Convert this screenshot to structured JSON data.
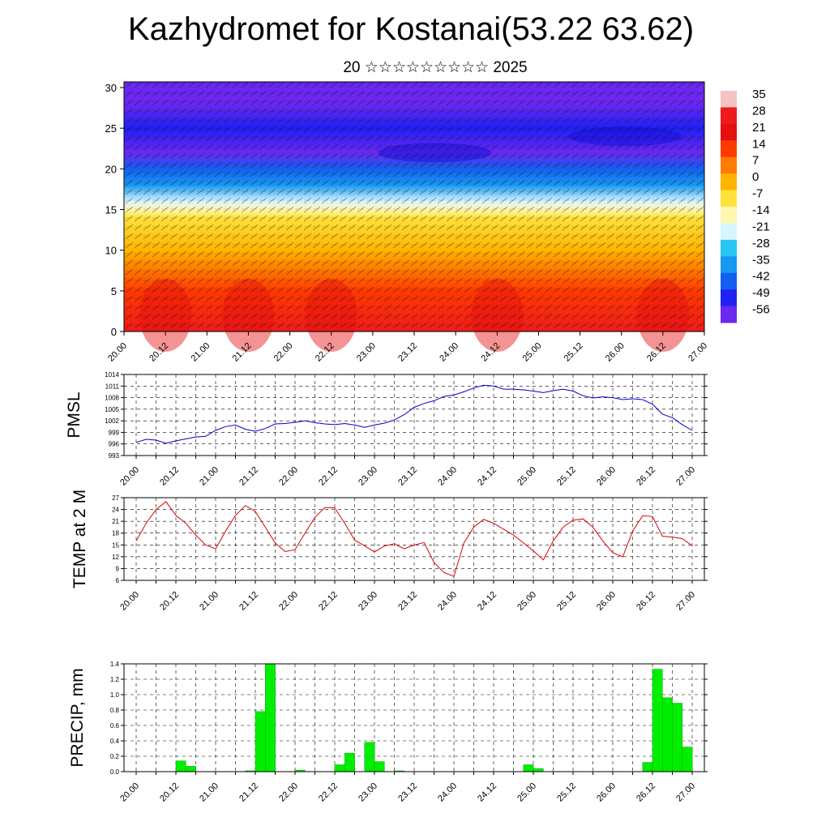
{
  "title": "Kazhydromet for Kostanai(53.22 63.62)",
  "subtitle": "20 ☆☆☆☆☆☆☆☆☆ 2025",
  "time_ticks": [
    "20.00",
    "20.12",
    "21.00",
    "21.12",
    "22.00",
    "22.12",
    "23.00",
    "23.12",
    "24.00",
    "24.12",
    "25.00",
    "25.12",
    "26.00",
    "26.12",
    "27.00"
  ],
  "chart_data": [
    {
      "type": "heatmap",
      "description_source": "cross-section panel",
      "ylabel": "",
      "y_ticks": [
        0,
        5,
        10,
        15,
        20,
        25,
        30
      ],
      "ylim": [
        0,
        30.7
      ],
      "colorbar": {
        "labels": [
          "35",
          "28",
          "21",
          "14",
          "7",
          "0",
          "-7",
          "-14",
          "-21",
          "-28",
          "-35",
          "-42",
          "-49",
          "-56"
        ],
        "colors": [
          "#f3c2c2",
          "#ee1b1b",
          "#e60f0f",
          "#ff3a00",
          "#ff7a00",
          "#ffb400",
          "#ffe23c",
          "#fff6b0",
          "#d8f4ff",
          "#28c6f4",
          "#1898f0",
          "#1260f0",
          "#2020f4",
          "#6a28f0"
        ]
      },
      "temperature_profile": {
        "heights": [
          0,
          5,
          10,
          14,
          15,
          16,
          18,
          20,
          22,
          25,
          28,
          30.7
        ],
        "values": [
          25,
          14,
          2,
          -8,
          -14,
          -22,
          -35,
          -45,
          -55,
          -52,
          -58,
          -60
        ]
      }
    },
    {
      "type": "line",
      "ylabel": "PMSL",
      "ylim": [
        993,
        1014
      ],
      "y_ticks": [
        993,
        996,
        999,
        1002,
        1005,
        1008,
        1011,
        1014
      ],
      "color": "#0000cc",
      "x": [
        0,
        3,
        6,
        9,
        12,
        15,
        18,
        21,
        24,
        27,
        30,
        33,
        36,
        39,
        42,
        45,
        48,
        51,
        54,
        57,
        60,
        63,
        66,
        69,
        72,
        75,
        78,
        81,
        84,
        87,
        90,
        93,
        96,
        99,
        102,
        105,
        108,
        111,
        114,
        117,
        120,
        123,
        126,
        129,
        132,
        135,
        138,
        141,
        144,
        147,
        150,
        153,
        156,
        159,
        162,
        165,
        168
      ],
      "values": [
        996.4,
        997.2,
        997.0,
        996.2,
        996.8,
        997.3,
        997.8,
        998.0,
        999.5,
        1000.5,
        1000.9,
        999.8,
        999.3,
        1000.0,
        1001.2,
        1001.3,
        1001.6,
        1002.0,
        1001.5,
        1001.2,
        1001.0,
        1001.3,
        1000.9,
        1000.3,
        1000.9,
        1001.4,
        1002.2,
        1003.6,
        1005.5,
        1006.5,
        1007.2,
        1008.3,
        1008.7,
        1009.5,
        1010.5,
        1011.2,
        1011.0,
        1010.2,
        1010.2,
        1010.0,
        1009.7,
        1009.3,
        1009.8,
        1010.2,
        1009.7,
        1008.5,
        1007.9,
        1008.2,
        1008.0,
        1007.5,
        1007.7,
        1007.5,
        1006.3,
        1003.7,
        1002.8,
        1001.0,
        999.5
      ]
    },
    {
      "type": "line",
      "ylabel": "TEMP at 2 M",
      "ylim": [
        6,
        27
      ],
      "y_ticks": [
        6,
        9,
        12,
        15,
        18,
        21,
        24,
        27
      ],
      "color": "#dd0000",
      "x": [
        0,
        3,
        6,
        9,
        12,
        15,
        18,
        21,
        24,
        27,
        30,
        33,
        36,
        39,
        42,
        45,
        48,
        51,
        54,
        57,
        60,
        63,
        66,
        69,
        72,
        75,
        78,
        81,
        84,
        87,
        90,
        93,
        96,
        99,
        102,
        105,
        108,
        111,
        114,
        117,
        120,
        123,
        126,
        129,
        132,
        135,
        138,
        141,
        144,
        147,
        150,
        153,
        156,
        159,
        162,
        165,
        168
      ],
      "values": [
        16.0,
        20.5,
        24.0,
        26.0,
        22.5,
        20.5,
        17.5,
        15.0,
        14.0,
        18.5,
        22.5,
        25.0,
        23.5,
        19.5,
        15.5,
        13.3,
        13.8,
        18.0,
        22.0,
        24.5,
        24.4,
        20.5,
        16.2,
        14.8,
        13.2,
        14.7,
        15.3,
        14.0,
        15.0,
        15.6,
        10.5,
        8.0,
        7.0,
        15.5,
        19.5,
        21.5,
        20.5,
        19.0,
        17.5,
        15.5,
        13.5,
        11.2,
        16.0,
        19.5,
        21.3,
        21.6,
        19.5,
        16.0,
        13.0,
        12.0,
        18.5,
        22.4,
        22.2,
        17.2,
        17.0,
        16.6,
        14.8
      ]
    },
    {
      "type": "bar",
      "ylabel": "PRECIP, mm",
      "ylim": [
        0,
        1.4
      ],
      "y_ticks": [
        "0.0",
        "0.2",
        "0.4",
        "0.6",
        "0.8",
        "1.0",
        "1.2",
        "1.4"
      ],
      "color": "#00ee00",
      "bars": [
        {
          "start": 12,
          "value": 0.14
        },
        {
          "start": 15,
          "value": 0.07
        },
        {
          "start": 33,
          "value": 0.01
        },
        {
          "start": 36,
          "value": 0.78
        },
        {
          "start": 39,
          "value": 1.4
        },
        {
          "start": 48,
          "value": 0.02
        },
        {
          "start": 60,
          "value": 0.09
        },
        {
          "start": 63,
          "value": 0.24
        },
        {
          "start": 69,
          "value": 0.38
        },
        {
          "start": 72,
          "value": 0.13
        },
        {
          "start": 78,
          "value": 0.01
        },
        {
          "start": 117,
          "value": 0.09
        },
        {
          "start": 120,
          "value": 0.04
        },
        {
          "start": 153,
          "value": 0.12
        },
        {
          "start": 156,
          "value": 1.33
        },
        {
          "start": 159,
          "value": 0.96
        },
        {
          "start": 162,
          "value": 0.89
        },
        {
          "start": 165,
          "value": 0.32
        }
      ]
    }
  ]
}
